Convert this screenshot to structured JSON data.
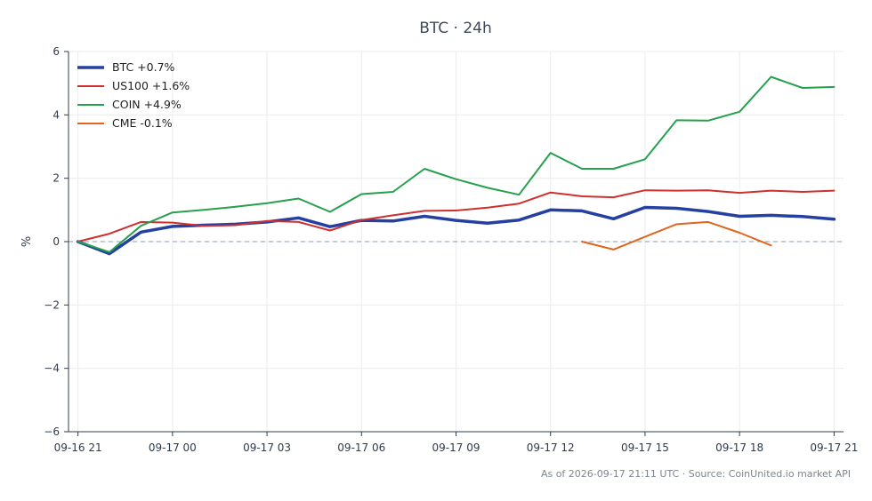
{
  "chart_data": {
    "type": "line",
    "title": "BTC · 24h",
    "ylabel": "%",
    "xlabel": "",
    "ylim": [
      -6,
      6
    ],
    "yticks": [
      6,
      4,
      2,
      0,
      -2,
      -4,
      -6
    ],
    "ytick_labels": [
      "6",
      "4",
      "2",
      "0",
      "−2",
      "−4",
      "−6"
    ],
    "xlim": [
      -0.3,
      24.3
    ],
    "xticks": [
      0,
      3,
      6,
      9,
      12,
      15,
      18,
      21,
      24
    ],
    "xtick_labels": [
      "09-16 21",
      "09-17 00",
      "09-17 03",
      "09-17 06",
      "09-17 09",
      "09-17 12",
      "09-17 15",
      "09-17 18",
      "09-17 21"
    ],
    "grid": true,
    "zero_line": true,
    "legend_position": "top-left",
    "series": [
      {
        "name": "BTC +0.7%",
        "color": "#2540a0",
        "width": 3.5,
        "x": [
          0,
          1,
          2,
          3,
          4,
          5,
          6,
          7,
          8,
          9,
          10,
          11,
          12,
          13,
          14,
          15,
          16,
          17,
          18,
          19,
          20,
          21,
          22,
          23,
          24
        ],
        "y": [
          0.0,
          -0.38,
          0.3,
          0.48,
          0.52,
          0.55,
          0.62,
          0.75,
          0.47,
          0.67,
          0.65,
          0.8,
          0.67,
          0.58,
          0.68,
          1.0,
          0.97,
          0.72,
          1.08,
          1.05,
          0.95,
          0.8,
          0.83,
          0.79,
          0.71
        ]
      },
      {
        "name": "US100 +1.6%",
        "color": "#cf2f2f",
        "width": 2,
        "x": [
          0,
          1,
          2,
          3,
          4,
          5,
          6,
          7,
          8,
          9,
          10,
          11,
          12,
          13,
          14,
          15,
          16,
          17,
          18,
          19,
          20,
          21,
          22,
          23,
          24
        ],
        "y": [
          0.0,
          0.25,
          0.62,
          0.6,
          0.5,
          0.52,
          0.65,
          0.62,
          0.35,
          0.68,
          0.83,
          0.97,
          0.98,
          1.07,
          1.2,
          1.55,
          1.43,
          1.4,
          1.62,
          1.61,
          1.62,
          1.54,
          1.61,
          1.57,
          1.61
        ]
      },
      {
        "name": "COIN +4.9%",
        "color": "#25a04d",
        "width": 2,
        "x": [
          0,
          1,
          2,
          3,
          4,
          5,
          6,
          7,
          8,
          9,
          10,
          11,
          12,
          13,
          14,
          15,
          16,
          17,
          18,
          19,
          20,
          21,
          22,
          23,
          24
        ],
        "y": [
          0.0,
          -0.33,
          0.5,
          0.92,
          1.0,
          1.1,
          1.21,
          1.36,
          0.94,
          1.5,
          1.57,
          2.3,
          1.97,
          1.7,
          1.48,
          2.8,
          2.3,
          2.3,
          2.6,
          3.83,
          3.82,
          4.1,
          5.2,
          4.85,
          4.88
        ]
      },
      {
        "name": "CME -0.1%",
        "color": "#e0651f",
        "width": 2,
        "x": [
          16,
          17,
          18,
          19,
          20,
          21,
          22
        ],
        "y": [
          0.0,
          -0.25,
          0.15,
          0.55,
          0.62,
          0.28,
          -0.12
        ]
      }
    ]
  },
  "footer": {
    "note": "As of 2026-09-17 21:11 UTC · Source: CoinUnited.io market API"
  }
}
